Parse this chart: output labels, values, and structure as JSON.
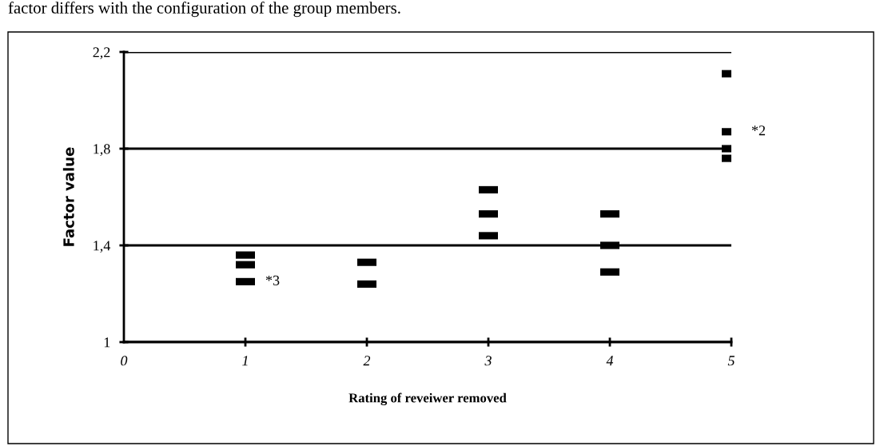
{
  "chart_data": {
    "type": "scatter",
    "x": [
      1,
      1,
      1,
      2,
      2,
      3,
      3,
      3,
      4,
      4,
      4,
      5,
      5,
      5,
      5
    ],
    "values": [
      1.36,
      1.32,
      1.25,
      1.33,
      1.24,
      1.63,
      1.53,
      1.44,
      1.53,
      1.4,
      1.29,
      2.11,
      1.87,
      1.8,
      1.76
    ],
    "color": "#000000",
    "marker": "square",
    "xlabel": "Rating of reveiwer removed",
    "ylabel": "Factor value",
    "xlim": [
      0,
      5
    ],
    "xticks": [
      0,
      1,
      2,
      3,
      4,
      5
    ],
    "ylim": [
      1,
      2.2
    ],
    "yticks": [
      1,
      {
        "value": 1.4,
        "label": "1,4"
      },
      {
        "value": 1.8,
        "label": "1,8"
      },
      {
        "value": 2.2,
        "label": "2,2"
      }
    ],
    "grid": "y",
    "annotations": [
      {
        "text": "*3",
        "x": 1,
        "y": 1.25
      },
      {
        "text": "*2",
        "x": 5,
        "y": 1.87
      },
      "factor differs with the configuration of the group members."
    ]
  }
}
